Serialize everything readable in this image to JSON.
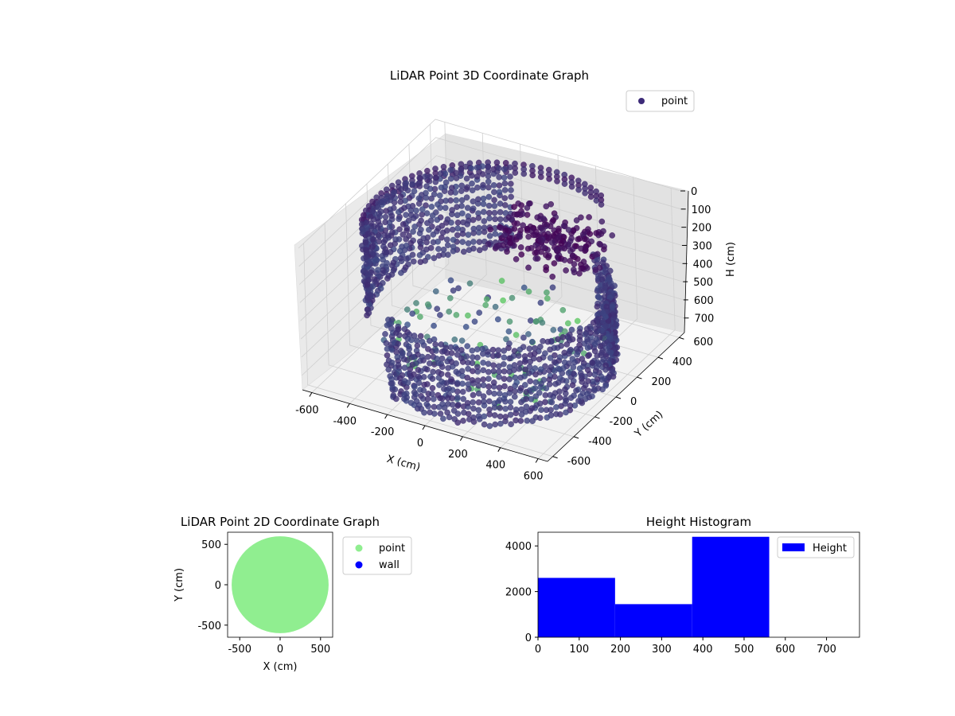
{
  "chart_data": [
    {
      "type": "scatter",
      "projection": "3d",
      "title": "LiDAR Point 3D Coordinate Graph",
      "xlabel": "X (cm)",
      "ylabel": "Y (cm)",
      "zlabel": "H (cm)",
      "xlim": [
        -650,
        650
      ],
      "ylim": [
        -650,
        650
      ],
      "zlim": [
        780,
        0
      ],
      "zinverted": true,
      "xticks": [
        "-600",
        "-400",
        "-200",
        "0",
        "200",
        "400",
        "600"
      ],
      "yticks": [
        "-600",
        "-400",
        "-200",
        "0",
        "200",
        "400",
        "600"
      ],
      "zticks": [
        "0",
        "100",
        "200",
        "300",
        "400",
        "500",
        "600",
        "700"
      ],
      "grid": true,
      "legend": {
        "position": "top-right",
        "entries": [
          {
            "label": "point",
            "color": "#3d2b78"
          }
        ]
      },
      "colormap": "viridis",
      "series": [
        {
          "name": "point",
          "description_color_range": [
            "#440154",
            "#5ec962"
          ],
          "structures": [
            {
              "kind": "wall-arc",
              "angle_start_deg": -120,
              "angle_end_deg": 60,
              "radius": 560,
              "h_min": 0,
              "h_max": 400
            },
            {
              "kind": "wall-arc",
              "angle_start_deg": 110,
              "angle_end_deg": 210,
              "radius": 580,
              "h_min": 250,
              "h_max": 700
            },
            {
              "kind": "upper-ring",
              "angle_start_deg": 60,
              "angle_end_deg": 200,
              "radius": 600,
              "h": 720
            },
            {
              "kind": "cluster",
              "x": 150,
              "y": 300,
              "h_min": 450,
              "h_max": 650
            },
            {
              "kind": "floor-disc",
              "radius": 520,
              "h": 0
            }
          ]
        }
      ]
    },
    {
      "type": "scatter",
      "title": "LiDAR Point 2D Coordinate Graph",
      "xlabel": "X (cm)",
      "ylabel": "Y (cm)",
      "xlim": [
        -650,
        650
      ],
      "ylim": [
        -650,
        650
      ],
      "xticks": [
        "-500",
        "0",
        "500"
      ],
      "yticks": [
        "500",
        "0",
        "-500"
      ],
      "legend": {
        "position": "outside-right",
        "entries": [
          {
            "label": "point",
            "color": "#90ee90"
          },
          {
            "label": "wall",
            "color": "#0000ff"
          }
        ]
      },
      "series": [
        {
          "name": "point",
          "color": "#90ee90",
          "shape": "filled-disc",
          "radius": 600,
          "center": [
            0,
            0
          ]
        },
        {
          "name": "wall",
          "color": "#0000ff",
          "values": []
        }
      ]
    },
    {
      "type": "bar",
      "subtype": "histogram",
      "title": "Height Histogram",
      "xlim": [
        0,
        780
      ],
      "ylim": [
        0,
        4600
      ],
      "xticks": [
        "0",
        "100",
        "200",
        "300",
        "400",
        "500",
        "600",
        "700"
      ],
      "yticks": [
        "0",
        "2000",
        "4000"
      ],
      "legend": {
        "position": "top-right",
        "entries": [
          {
            "label": "Height",
            "color": "#0000ff"
          }
        ]
      },
      "color": "#0000ff",
      "bins": [
        {
          "start": 0,
          "end": 187,
          "value": 2600
        },
        {
          "start": 187,
          "end": 374,
          "value": 1450
        },
        {
          "start": 374,
          "end": 561,
          "value": 4400
        }
      ]
    }
  ]
}
